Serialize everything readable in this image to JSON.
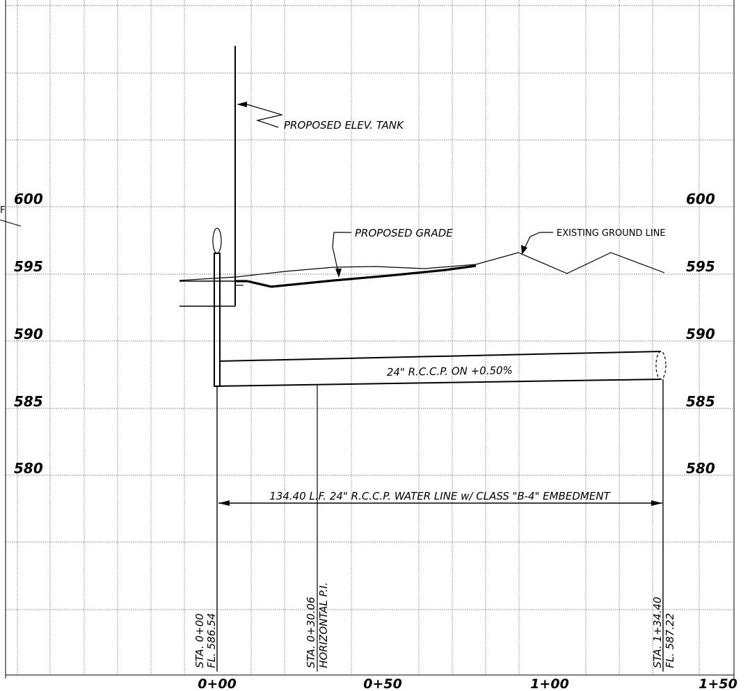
{
  "elevation_labels": {
    "left": [
      "600",
      "595",
      "590",
      "585",
      "580"
    ],
    "right": [
      "600",
      "595",
      "590",
      "585",
      "580"
    ]
  },
  "station_labels": [
    "0+00",
    "0+50",
    "1+00",
    "1+50"
  ],
  "callouts": {
    "tank": "PROPOSED ELEV. TANK",
    "proposed_grade": "PROPOSED GRADE",
    "existing_ground": "EXISTING GROUND LINE",
    "pipe": "24\" R.C.C.P. ON +0.50%",
    "dimension": "134.40 L.F. 24\" R.C.C.P. WATER LINE w/ CLASS \"B-4\" EMBEDMENT"
  },
  "station_notes": {
    "start_sta": "STA. 0+00",
    "start_fl": "FL. 586.54",
    "pi_sta": "STA. 0+30.06",
    "pi_label": "HORIZONTAL P.I.",
    "end_sta": "STA. 1+34.40",
    "end_fl": "FL. 587.22"
  },
  "edge_fragment": "F"
}
